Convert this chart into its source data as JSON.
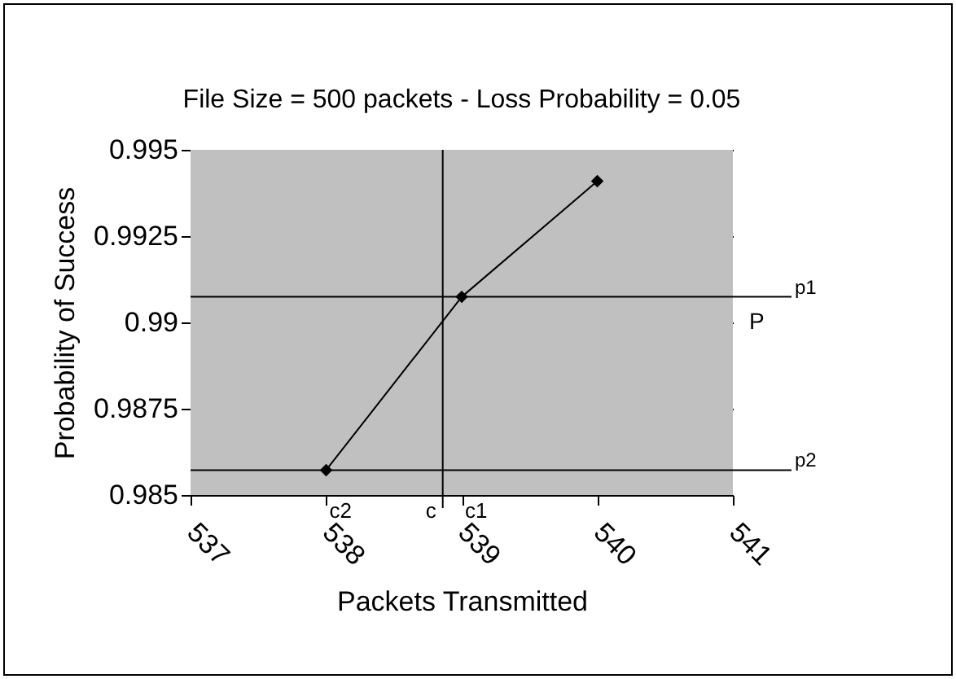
{
  "chart_data": {
    "type": "line",
    "title": "File Size = 500 packets - Loss Probability = 0.05",
    "xlabel": "Packets Transmitted",
    "ylabel": "Probability of Success",
    "x": [
      538,
      539,
      540
    ],
    "series": [
      {
        "color": "#000000",
        "values": [
          0.98572,
          0.99074,
          0.99409
        ]
      }
    ],
    "xlim": [
      537,
      541
    ],
    "xticks": [
      537,
      538,
      539,
      540,
      541
    ],
    "ylim": [
      0.985,
      0.995
    ],
    "yticks": [
      0.985,
      0.9875,
      0.99,
      0.9925,
      0.995
    ],
    "grid": "y",
    "marker": "diamond",
    "line_style": "solid",
    "ref_lines": [
      {
        "axis": "y",
        "value": 0.99074,
        "label": "p1"
      },
      {
        "axis": "y",
        "value": 0.98572,
        "label": "p2"
      },
      {
        "axis": "x",
        "value": 538.86,
        "label": "c"
      }
    ],
    "annotations": [
      "P",
      "c1",
      "c2"
    ]
  }
}
